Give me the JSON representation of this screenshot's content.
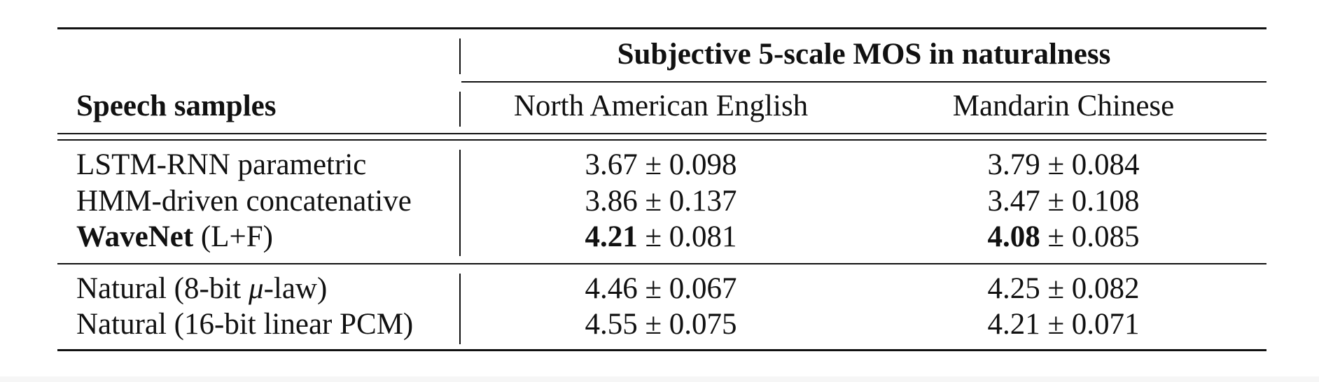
{
  "table": {
    "header": {
      "group_label": "Subjective 5-scale MOS in naturalness",
      "row_header": "Speech samples",
      "columns": [
        "North American English",
        "Mandarin Chinese"
      ]
    },
    "group1": [
      {
        "name": "LSTM-RNN parametric",
        "name_suffix": "",
        "nae": {
          "mean": "3.67",
          "pm": "± 0.098"
        },
        "mc": {
          "mean": "3.79",
          "pm": "± 0.084"
        }
      },
      {
        "name": "HMM-driven concatenative",
        "name_suffix": "",
        "nae": {
          "mean": "3.86",
          "pm": "± 0.137"
        },
        "mc": {
          "mean": "3.47",
          "pm": "± 0.108"
        }
      },
      {
        "name": "WaveNet",
        "name_suffix": " (L+F)",
        "nae": {
          "mean": "4.21",
          "pm": "± 0.081"
        },
        "mc": {
          "mean": "4.08",
          "pm": "± 0.085"
        }
      }
    ],
    "group2": [
      {
        "name_prefix": "Natural (8-bit ",
        "name_symbol": "μ",
        "name_suffix": "-law)",
        "nae": {
          "mean": "4.46",
          "pm": "± 0.067"
        },
        "mc": {
          "mean": "4.25",
          "pm": "± 0.082"
        }
      },
      {
        "name": "Natural (16-bit linear PCM)",
        "nae": {
          "mean": "4.55",
          "pm": "± 0.075"
        },
        "mc": {
          "mean": "4.21",
          "pm": "± 0.071"
        }
      }
    ]
  }
}
